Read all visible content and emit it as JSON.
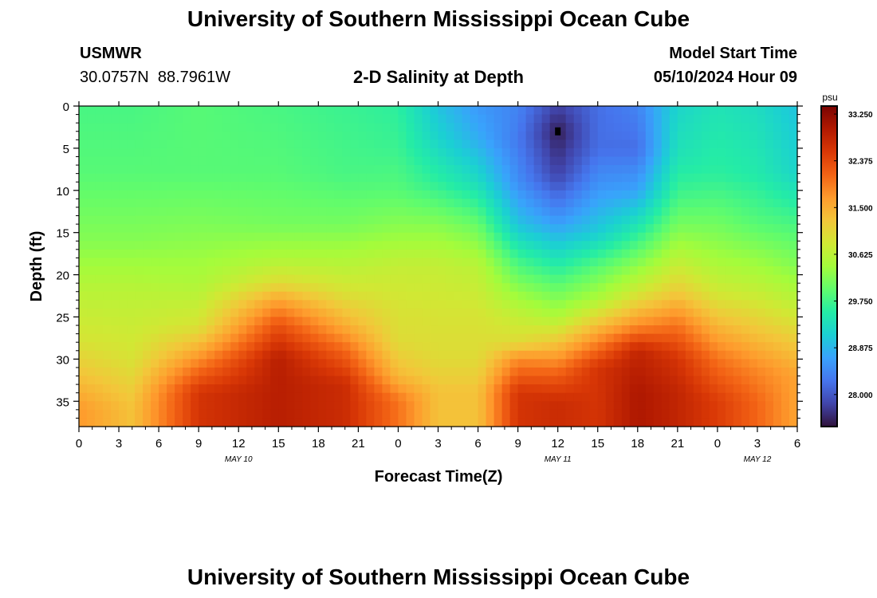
{
  "header": {
    "title": "University of Southern Mississippi Ocean Cube",
    "station_id": "USMWR",
    "station_coords": "30.0757N  88.7961W",
    "subtitle": "2-D Salinity at Depth",
    "start_label": "Model Start Time",
    "start_value": "05/10/2024 Hour 09"
  },
  "footer": {
    "title": "University of Southern Mississippi Ocean Cube"
  },
  "chart_data": {
    "type": "heatmap",
    "title": "2-D Salinity at Depth",
    "xlabel": "Forecast Time(Z)",
    "ylabel": "Depth (ft)",
    "units": "psu",
    "x_hours_range": [
      0,
      54
    ],
    "y_range": [
      0,
      38
    ],
    "x_tick_labels": [
      "0",
      "3",
      "6",
      "9",
      "12",
      "15",
      "18",
      "21",
      "0",
      "3",
      "6",
      "9",
      "12",
      "15",
      "18",
      "21",
      "0",
      "3",
      "6"
    ],
    "y_ticks": [
      0,
      5,
      10,
      15,
      20,
      25,
      30,
      35
    ],
    "date_labels": [
      {
        "hour": 12,
        "label": "MAY 10"
      },
      {
        "hour": 36,
        "label": "MAY 11"
      },
      {
        "hour": 51,
        "label": "MAY 12"
      }
    ],
    "colorbar": {
      "min": 27.4,
      "max": 33.4,
      "ticks": [
        "33.250",
        "32.375",
        "31.500",
        "30.625",
        "29.750",
        "28.875",
        "28.000"
      ],
      "colors": [
        "#30123b",
        "#4145ab",
        "#4675ed",
        "#39a2fc",
        "#1bcfd4",
        "#24eca6",
        "#61fc6c",
        "#a4fc3b",
        "#d1e834",
        "#f3c63a",
        "#fe9b2d",
        "#f36315",
        "#d93806",
        "#b11901",
        "#7a0402"
      ]
    },
    "marker": {
      "hour": 36,
      "depth": 3
    },
    "depth_profiles": [
      {
        "hour": 0,
        "boundaries": [
          0,
          8,
          16,
          22,
          28,
          32,
          36,
          38
        ],
        "values": [
          29.8,
          29.9,
          30.2,
          30.6,
          30.9,
          31.3,
          31.7,
          31.7
        ]
      },
      {
        "hour": 4,
        "boundaries": [
          0,
          8,
          16,
          22,
          30,
          34,
          36,
          38
        ],
        "values": [
          29.8,
          29.9,
          30.2,
          30.6,
          30.9,
          31.2,
          31.3,
          31.3
        ]
      },
      {
        "hour": 9,
        "boundaries": [
          0,
          8,
          15,
          21,
          26,
          28,
          31,
          34,
          38
        ],
        "values": [
          29.9,
          29.9,
          30.2,
          30.5,
          30.9,
          31.3,
          32.0,
          32.6,
          32.6
        ]
      },
      {
        "hour": 15,
        "boundaries": [
          0,
          8,
          14,
          18,
          21,
          23,
          26,
          30,
          38
        ],
        "values": [
          29.8,
          29.9,
          30.1,
          30.5,
          31.0,
          31.6,
          32.3,
          32.9,
          32.9
        ]
      },
      {
        "hour": 20,
        "boundaries": [
          0,
          8,
          14,
          18,
          22,
          26,
          29,
          33,
          38
        ],
        "values": [
          29.7,
          29.8,
          30.1,
          30.5,
          30.9,
          31.5,
          32.1,
          32.7,
          32.7
        ]
      },
      {
        "hour": 24,
        "boundaries": [
          0,
          5,
          10,
          15,
          19,
          24,
          28,
          32,
          35,
          38
        ],
        "values": [
          29.6,
          29.7,
          29.9,
          30.3,
          30.7,
          30.9,
          31.0,
          31.4,
          32.0,
          32.0
        ]
      },
      {
        "hour": 27,
        "boundaries": [
          0,
          4,
          9,
          14,
          19,
          25,
          30,
          34,
          38
        ],
        "values": [
          29.0,
          29.2,
          29.6,
          30.2,
          30.7,
          30.9,
          31.0,
          31.3,
          31.3
        ]
      },
      {
        "hour": 30,
        "boundaries": [
          0,
          4,
          9,
          14,
          19,
          25,
          30,
          34,
          38
        ],
        "values": [
          28.6,
          28.8,
          29.3,
          30.0,
          30.6,
          30.9,
          31.0,
          31.3,
          31.3
        ]
      },
      {
        "hour": 33,
        "boundaries": [
          0,
          4,
          9,
          14,
          18,
          22,
          25,
          28,
          30,
          34,
          38
        ],
        "values": [
          28.4,
          28.3,
          28.5,
          29.0,
          29.7,
          30.3,
          30.7,
          31.0,
          31.8,
          32.6,
          32.6
        ]
      },
      {
        "hour": 36,
        "boundaries": [
          0,
          3,
          8,
          13,
          17,
          21,
          25,
          29,
          32,
          35,
          38
        ],
        "values": [
          27.8,
          27.5,
          27.8,
          28.5,
          29.2,
          29.9,
          30.5,
          31.5,
          32.2,
          32.7,
          32.7
        ]
      },
      {
        "hour": 39,
        "boundaries": [
          0,
          5,
          10,
          15,
          19,
          23,
          27,
          31,
          38
        ],
        "values": [
          28.2,
          28.2,
          28.6,
          29.1,
          29.9,
          30.5,
          31.6,
          32.6,
          32.6
        ]
      },
      {
        "hour": 42,
        "boundaries": [
          0,
          5,
          10,
          14,
          18,
          22,
          26,
          29,
          34,
          38
        ],
        "values": [
          28.4,
          28.2,
          28.7,
          29.4,
          30.1,
          30.8,
          31.8,
          32.8,
          33.0,
          33.0
        ]
      },
      {
        "hour": 45,
        "boundaries": [
          0,
          6,
          10,
          14,
          18,
          22,
          26,
          30,
          34,
          38
        ],
        "values": [
          29.2,
          29.4,
          29.7,
          30.1,
          30.6,
          31.2,
          32.0,
          32.6,
          32.8,
          32.8
        ]
      },
      {
        "hour": 48,
        "boundaries": [
          0,
          8,
          13,
          18,
          22,
          26,
          30,
          35,
          38
        ],
        "values": [
          29.4,
          29.6,
          30.0,
          30.4,
          30.8,
          31.4,
          32.0,
          32.5,
          32.5
        ]
      },
      {
        "hour": 51,
        "boundaries": [
          0,
          8,
          14,
          18,
          22,
          27,
          31,
          35,
          38
        ],
        "values": [
          29.3,
          29.5,
          29.9,
          30.3,
          30.7,
          31.3,
          31.8,
          32.1,
          32.1
        ]
      },
      {
        "hour": 54,
        "boundaries": [
          0,
          8,
          14,
          19,
          23,
          28,
          32,
          38
        ],
        "values": [
          29.0,
          29.2,
          29.8,
          30.2,
          30.6,
          31.2,
          31.6,
          31.6
        ]
      }
    ]
  }
}
